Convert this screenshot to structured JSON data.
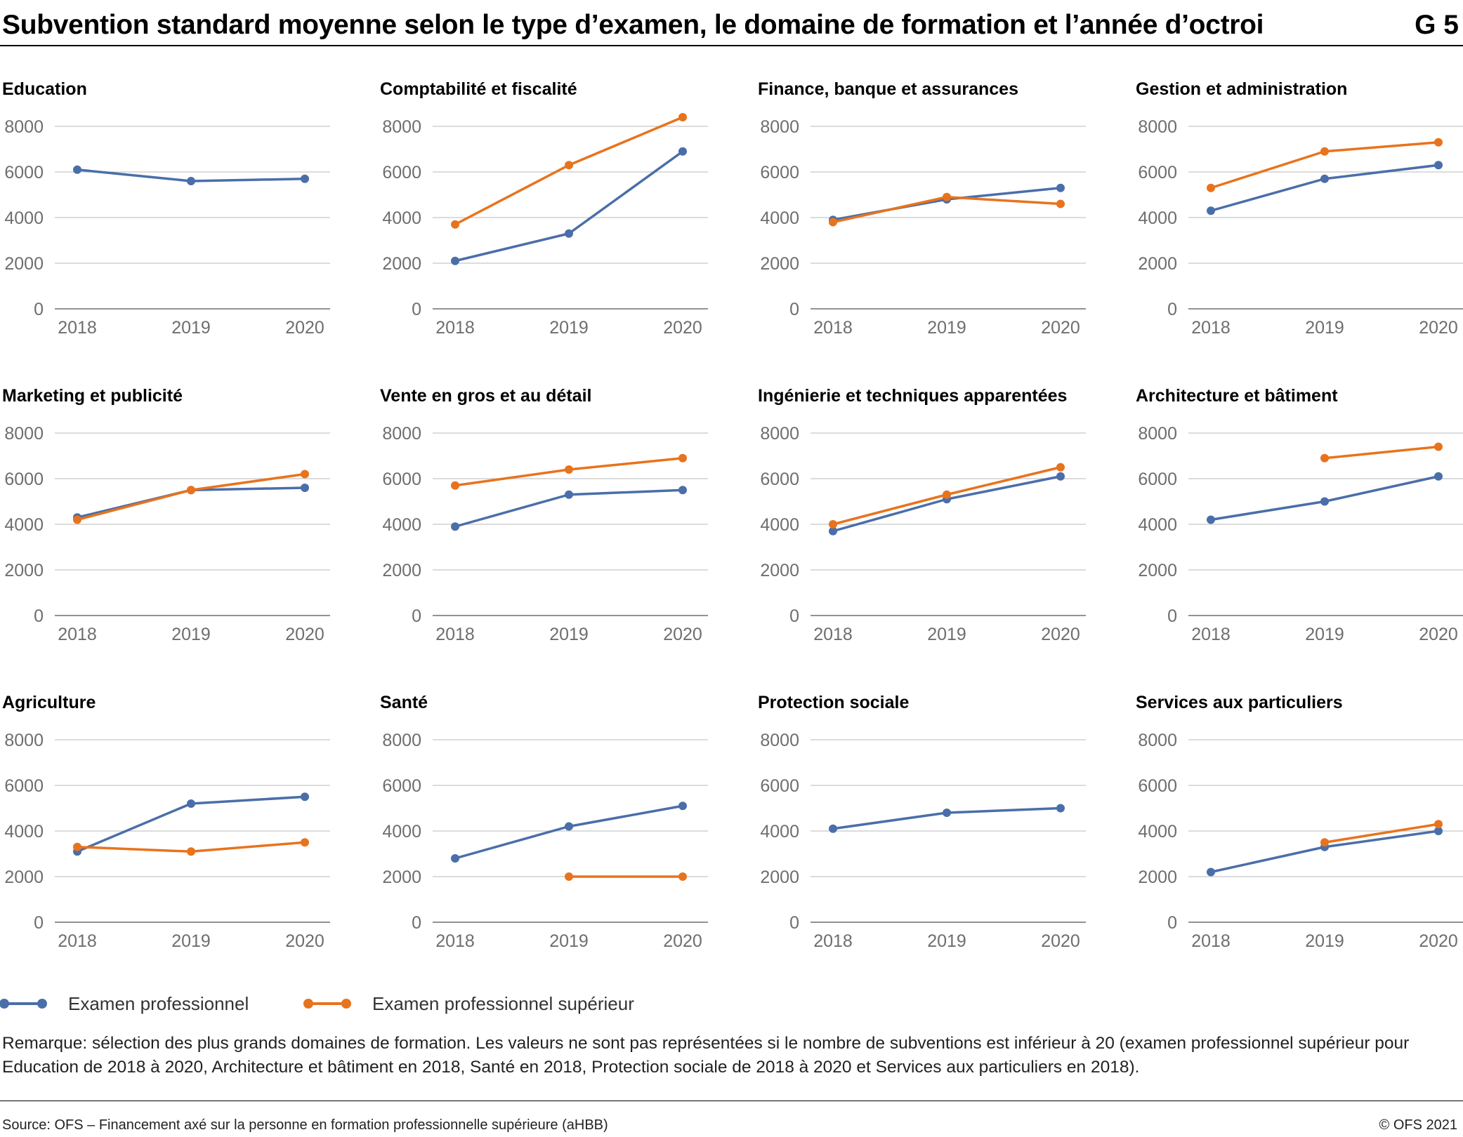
{
  "header": {
    "title": "Subvention standard moyenne selon le type d’examen, le domaine de formation et l’année d’octroi",
    "chart_number": "G 5"
  },
  "colors": {
    "series1": "#4a6ea9",
    "series2": "#e8731d",
    "grid": "#c8c8c8",
    "axis": "#6e6e6e"
  },
  "legend": [
    {
      "label": "Examen professionnel",
      "color": "#4a6ea9"
    },
    {
      "label": "Examen professionnel supérieur",
      "color": "#e8731d"
    }
  ],
  "chart_data": [
    {
      "type": "line",
      "title": "Education",
      "categories": [
        "2018",
        "2019",
        "2020"
      ],
      "ylim": [
        0,
        8000
      ],
      "yticks": [
        0,
        2000,
        4000,
        6000,
        8000
      ],
      "grid": true,
      "series": [
        {
          "name": "Examen professionnel",
          "values": [
            6100,
            5600,
            5700
          ]
        },
        {
          "name": "Examen professionnel supérieur",
          "values": [
            null,
            null,
            null
          ]
        }
      ]
    },
    {
      "type": "line",
      "title": "Comptabilité et fiscalité",
      "categories": [
        "2018",
        "2019",
        "2020"
      ],
      "ylim": [
        0,
        8000
      ],
      "yticks": [
        0,
        2000,
        4000,
        6000,
        8000
      ],
      "grid": true,
      "series": [
        {
          "name": "Examen professionnel",
          "values": [
            2100,
            3300,
            6900
          ]
        },
        {
          "name": "Examen professionnel supérieur",
          "values": [
            3700,
            6300,
            8400
          ]
        }
      ]
    },
    {
      "type": "line",
      "title": "Finance, banque et assurances",
      "categories": [
        "2018",
        "2019",
        "2020"
      ],
      "ylim": [
        0,
        8000
      ],
      "yticks": [
        0,
        2000,
        4000,
        6000,
        8000
      ],
      "grid": true,
      "series": [
        {
          "name": "Examen professionnel",
          "values": [
            3900,
            4800,
            5300
          ]
        },
        {
          "name": "Examen professionnel supérieur",
          "values": [
            3800,
            4900,
            4600
          ]
        }
      ]
    },
    {
      "type": "line",
      "title": "Gestion et administration",
      "categories": [
        "2018",
        "2019",
        "2020"
      ],
      "ylim": [
        0,
        8000
      ],
      "yticks": [
        0,
        2000,
        4000,
        6000,
        8000
      ],
      "grid": true,
      "series": [
        {
          "name": "Examen professionnel",
          "values": [
            4300,
            5700,
            6300
          ]
        },
        {
          "name": "Examen professionnel supérieur",
          "values": [
            5300,
            6900,
            7300
          ]
        }
      ]
    },
    {
      "type": "line",
      "title": "Marketing et publicité",
      "categories": [
        "2018",
        "2019",
        "2020"
      ],
      "ylim": [
        0,
        8000
      ],
      "yticks": [
        0,
        2000,
        4000,
        6000,
        8000
      ],
      "grid": true,
      "series": [
        {
          "name": "Examen professionnel",
          "values": [
            4300,
            5500,
            5600
          ]
        },
        {
          "name": "Examen professionnel supérieur",
          "values": [
            4200,
            5500,
            6200
          ]
        }
      ]
    },
    {
      "type": "line",
      "title": "Vente en gros et au détail",
      "categories": [
        "2018",
        "2019",
        "2020"
      ],
      "ylim": [
        0,
        8000
      ],
      "yticks": [
        0,
        2000,
        4000,
        6000,
        8000
      ],
      "grid": true,
      "series": [
        {
          "name": "Examen professionnel",
          "values": [
            3900,
            5300,
            5500
          ]
        },
        {
          "name": "Examen professionnel supérieur",
          "values": [
            5700,
            6400,
            6900
          ]
        }
      ]
    },
    {
      "type": "line",
      "title": "Ingénierie et techniques apparentées",
      "categories": [
        "2018",
        "2019",
        "2020"
      ],
      "ylim": [
        0,
        8000
      ],
      "yticks": [
        0,
        2000,
        4000,
        6000,
        8000
      ],
      "grid": true,
      "series": [
        {
          "name": "Examen professionnel",
          "values": [
            3700,
            5100,
            6100
          ]
        },
        {
          "name": "Examen professionnel supérieur",
          "values": [
            4000,
            5300,
            6500
          ]
        }
      ]
    },
    {
      "type": "line",
      "title": "Architecture et bâtiment",
      "categories": [
        "2018",
        "2019",
        "2020"
      ],
      "ylim": [
        0,
        8000
      ],
      "yticks": [
        0,
        2000,
        4000,
        6000,
        8000
      ],
      "grid": true,
      "series": [
        {
          "name": "Examen professionnel",
          "values": [
            4200,
            5000,
            6100
          ]
        },
        {
          "name": "Examen professionnel supérieur",
          "values": [
            null,
            6900,
            7400
          ]
        }
      ]
    },
    {
      "type": "line",
      "title": "Agriculture",
      "categories": [
        "2018",
        "2019",
        "2020"
      ],
      "ylim": [
        0,
        8000
      ],
      "yticks": [
        0,
        2000,
        4000,
        6000,
        8000
      ],
      "grid": true,
      "series": [
        {
          "name": "Examen professionnel",
          "values": [
            3100,
            5200,
            5500
          ]
        },
        {
          "name": "Examen professionnel supérieur",
          "values": [
            3300,
            3100,
            3500
          ]
        }
      ]
    },
    {
      "type": "line",
      "title": "Santé",
      "categories": [
        "2018",
        "2019",
        "2020"
      ],
      "ylim": [
        0,
        8000
      ],
      "yticks": [
        0,
        2000,
        4000,
        6000,
        8000
      ],
      "grid": true,
      "series": [
        {
          "name": "Examen professionnel",
          "values": [
            2800,
            4200,
            5100
          ]
        },
        {
          "name": "Examen professionnel supérieur",
          "values": [
            null,
            2000,
            2000
          ]
        }
      ]
    },
    {
      "type": "line",
      "title": "Protection sociale",
      "categories": [
        "2018",
        "2019",
        "2020"
      ],
      "ylim": [
        0,
        8000
      ],
      "yticks": [
        0,
        2000,
        4000,
        6000,
        8000
      ],
      "grid": true,
      "series": [
        {
          "name": "Examen professionnel",
          "values": [
            4100,
            4800,
            5000
          ]
        },
        {
          "name": "Examen professionnel supérieur",
          "values": [
            null,
            null,
            null
          ]
        }
      ]
    },
    {
      "type": "line",
      "title": "Services aux particuliers",
      "categories": [
        "2018",
        "2019",
        "2020"
      ],
      "ylim": [
        0,
        8000
      ],
      "yticks": [
        0,
        2000,
        4000,
        6000,
        8000
      ],
      "grid": true,
      "series": [
        {
          "name": "Examen professionnel",
          "values": [
            2200,
            3300,
            4000
          ]
        },
        {
          "name": "Examen professionnel supérieur",
          "values": [
            null,
            3500,
            4300
          ]
        }
      ]
    }
  ],
  "note": "Remarque: sélection des plus grands domaines de formation. Les valeurs ne sont pas représentées si le nombre de subventions est inférieur à 20 (examen professionnel supérieur pour Education de 2018 à 2020, Architecture et bâtiment en 2018, Santé en 2018, Protection sociale de 2018 à 2020 et Services aux particuliers en 2018).",
  "footer": {
    "source": "Source: OFS – Financement axé sur la personne en formation professionnelle supérieure (aHBB)",
    "copyright": "© OFS 2021"
  }
}
